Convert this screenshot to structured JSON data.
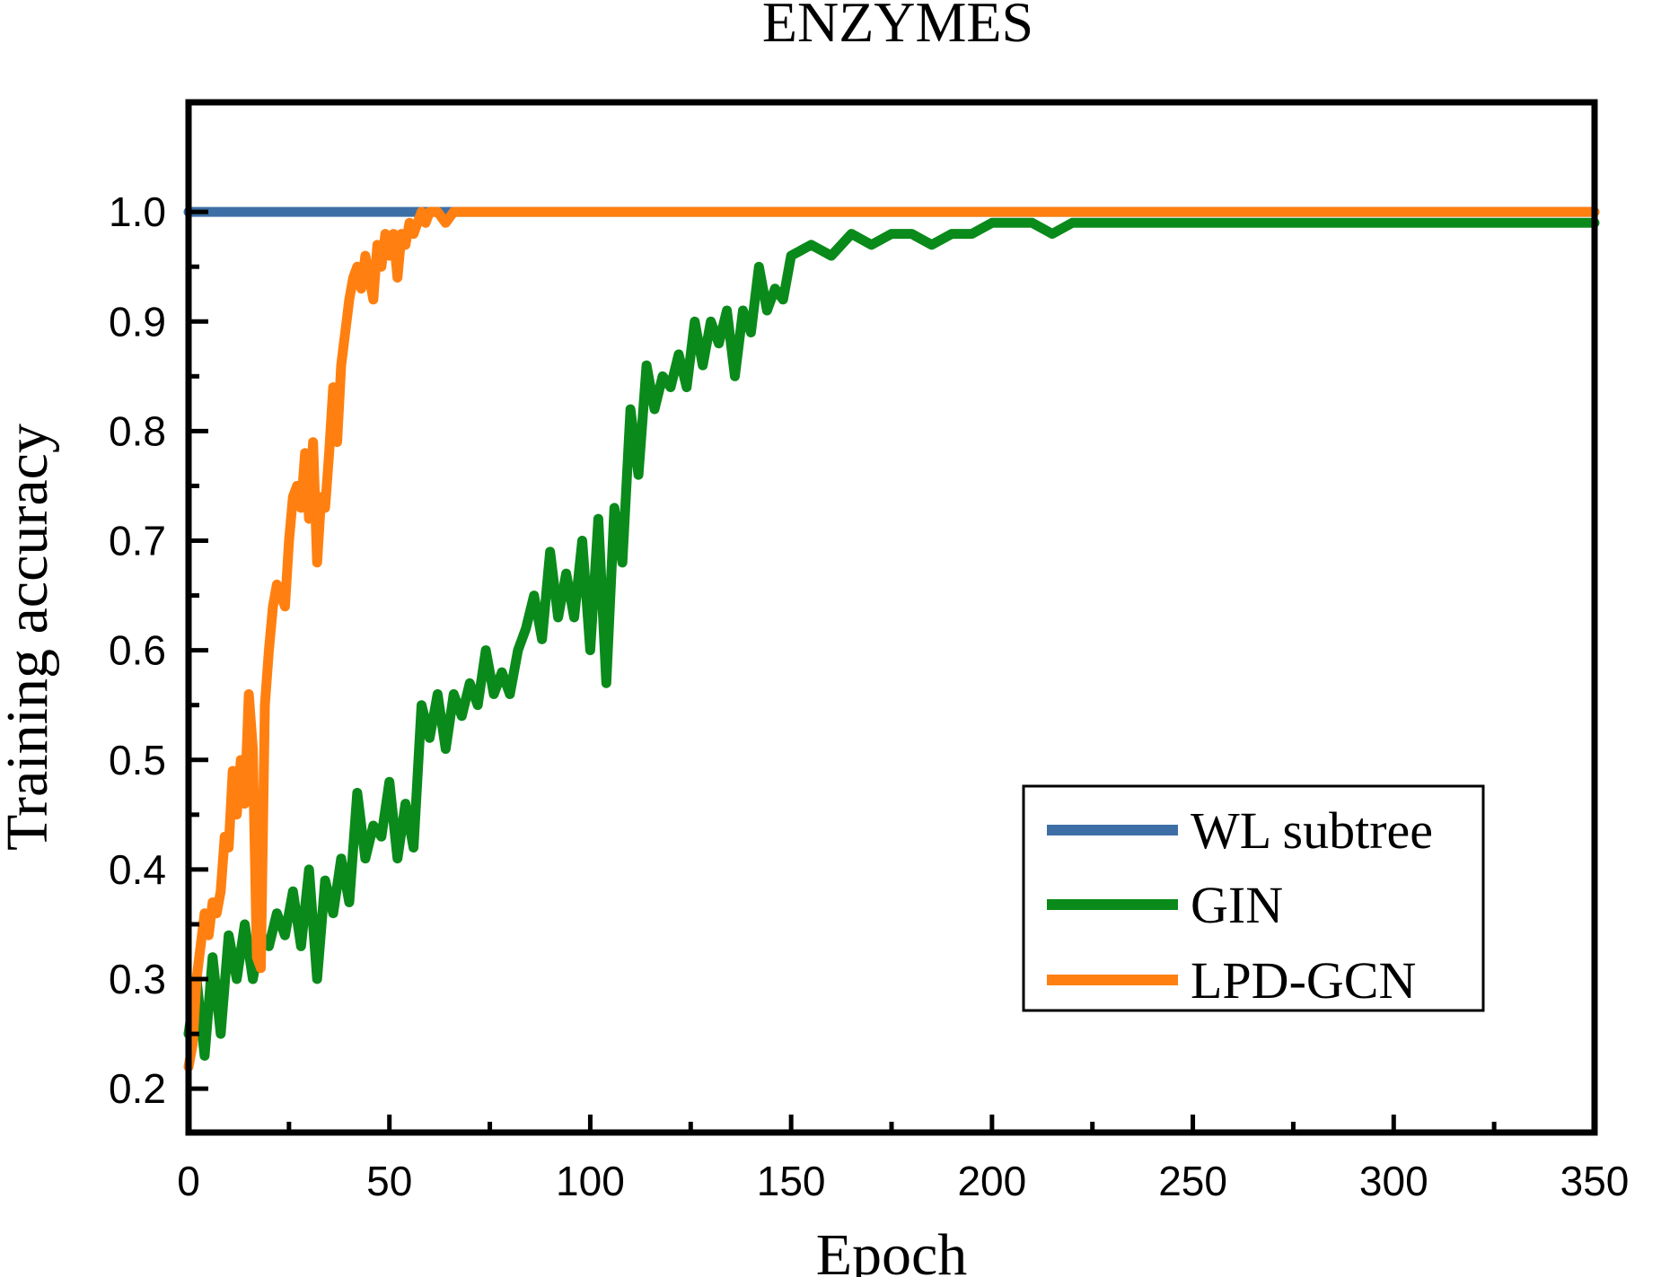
{
  "chart_data": {
    "type": "line",
    "title": "ENZYMES",
    "xlabel": "Epoch",
    "ylabel": "Training accuracy",
    "xlim": [
      0,
      350
    ],
    "ylim": [
      0.16,
      1.1
    ],
    "xticks": [
      0,
      50,
      100,
      150,
      200,
      250,
      300,
      350
    ],
    "xtick_labels": [
      "0",
      "50",
      "100",
      "150",
      "200",
      "250",
      "300",
      "350"
    ],
    "yticks": [
      0.2,
      0.3,
      0.4,
      0.5,
      0.6,
      0.7,
      0.8,
      0.9,
      1.0
    ],
    "ytick_labels": [
      "0.2",
      "0.3",
      "0.4",
      "0.5",
      "0.6",
      "0.7",
      "0.8",
      "0.9",
      "1.0"
    ],
    "grid": false,
    "legend_position": "lower-right",
    "series": [
      {
        "name": "WL subtree",
        "color": "#3d6fa6",
        "x": [
          0,
          350
        ],
        "y": [
          1.0,
          1.0
        ]
      },
      {
        "name": "GIN",
        "color": "#0a8a1a",
        "x": [
          0,
          2,
          4,
          6,
          8,
          10,
          12,
          14,
          16,
          18,
          20,
          22,
          24,
          26,
          28,
          30,
          32,
          34,
          36,
          38,
          40,
          42,
          44,
          46,
          48,
          50,
          52,
          54,
          56,
          58,
          60,
          62,
          64,
          66,
          68,
          70,
          72,
          74,
          76,
          78,
          80,
          82,
          84,
          86,
          88,
          90,
          92,
          94,
          96,
          98,
          100,
          102,
          104,
          106,
          108,
          110,
          112,
          114,
          116,
          118,
          120,
          122,
          124,
          126,
          128,
          130,
          132,
          134,
          136,
          138,
          140,
          142,
          144,
          146,
          148,
          150,
          155,
          160,
          165,
          170,
          175,
          180,
          185,
          190,
          195,
          200,
          205,
          210,
          215,
          220,
          230,
          240,
          250,
          260,
          270,
          280,
          290,
          300,
          310,
          320,
          330,
          340,
          350
        ],
        "y": [
          0.25,
          0.3,
          0.23,
          0.32,
          0.25,
          0.34,
          0.3,
          0.35,
          0.3,
          0.34,
          0.33,
          0.36,
          0.34,
          0.38,
          0.33,
          0.4,
          0.3,
          0.39,
          0.36,
          0.41,
          0.37,
          0.47,
          0.41,
          0.44,
          0.43,
          0.48,
          0.41,
          0.46,
          0.42,
          0.55,
          0.52,
          0.56,
          0.51,
          0.56,
          0.54,
          0.57,
          0.55,
          0.6,
          0.56,
          0.58,
          0.56,
          0.6,
          0.62,
          0.65,
          0.61,
          0.69,
          0.63,
          0.67,
          0.63,
          0.7,
          0.6,
          0.72,
          0.57,
          0.73,
          0.68,
          0.82,
          0.76,
          0.86,
          0.82,
          0.85,
          0.84,
          0.87,
          0.84,
          0.9,
          0.86,
          0.9,
          0.88,
          0.91,
          0.85,
          0.91,
          0.89,
          0.95,
          0.91,
          0.93,
          0.92,
          0.96,
          0.97,
          0.96,
          0.98,
          0.97,
          0.98,
          0.98,
          0.97,
          0.98,
          0.98,
          0.99,
          0.99,
          0.99,
          0.98,
          0.99,
          0.99,
          0.99,
          0.99,
          0.99,
          0.99,
          0.99,
          0.99,
          0.99,
          0.99,
          0.99,
          0.99,
          0.99,
          0.99
        ]
      },
      {
        "name": "LPD-GCN",
        "color": "#ff8010",
        "x": [
          0,
          1,
          2,
          3,
          4,
          5,
          6,
          7,
          8,
          9,
          10,
          11,
          12,
          13,
          14,
          15,
          16,
          17,
          18,
          19,
          20,
          21,
          22,
          23,
          24,
          25,
          26,
          27,
          28,
          29,
          30,
          31,
          32,
          33,
          34,
          35,
          36,
          37,
          38,
          39,
          40,
          41,
          42,
          43,
          44,
          45,
          46,
          47,
          48,
          49,
          50,
          51,
          52,
          53,
          54,
          55,
          56,
          57,
          58,
          59,
          60,
          62,
          64,
          66,
          68,
          70,
          75,
          80,
          85,
          90,
          95,
          100,
          150,
          200,
          250,
          300,
          350
        ],
        "y": [
          0.22,
          0.24,
          0.3,
          0.33,
          0.36,
          0.34,
          0.37,
          0.36,
          0.38,
          0.43,
          0.42,
          0.49,
          0.45,
          0.5,
          0.46,
          0.56,
          0.51,
          0.32,
          0.31,
          0.55,
          0.6,
          0.64,
          0.66,
          0.65,
          0.64,
          0.7,
          0.74,
          0.75,
          0.73,
          0.78,
          0.72,
          0.79,
          0.68,
          0.74,
          0.73,
          0.78,
          0.84,
          0.79,
          0.86,
          0.89,
          0.92,
          0.94,
          0.95,
          0.93,
          0.96,
          0.94,
          0.92,
          0.97,
          0.95,
          0.98,
          0.96,
          0.98,
          0.94,
          0.98,
          0.97,
          0.99,
          0.98,
          0.99,
          1.0,
          0.99,
          1.0,
          1.0,
          0.99,
          1.0,
          1.0,
          1.0,
          1.0,
          1.0,
          1.0,
          1.0,
          1.0,
          1.0,
          1.0,
          1.0,
          1.0,
          1.0,
          1.0
        ]
      }
    ]
  }
}
